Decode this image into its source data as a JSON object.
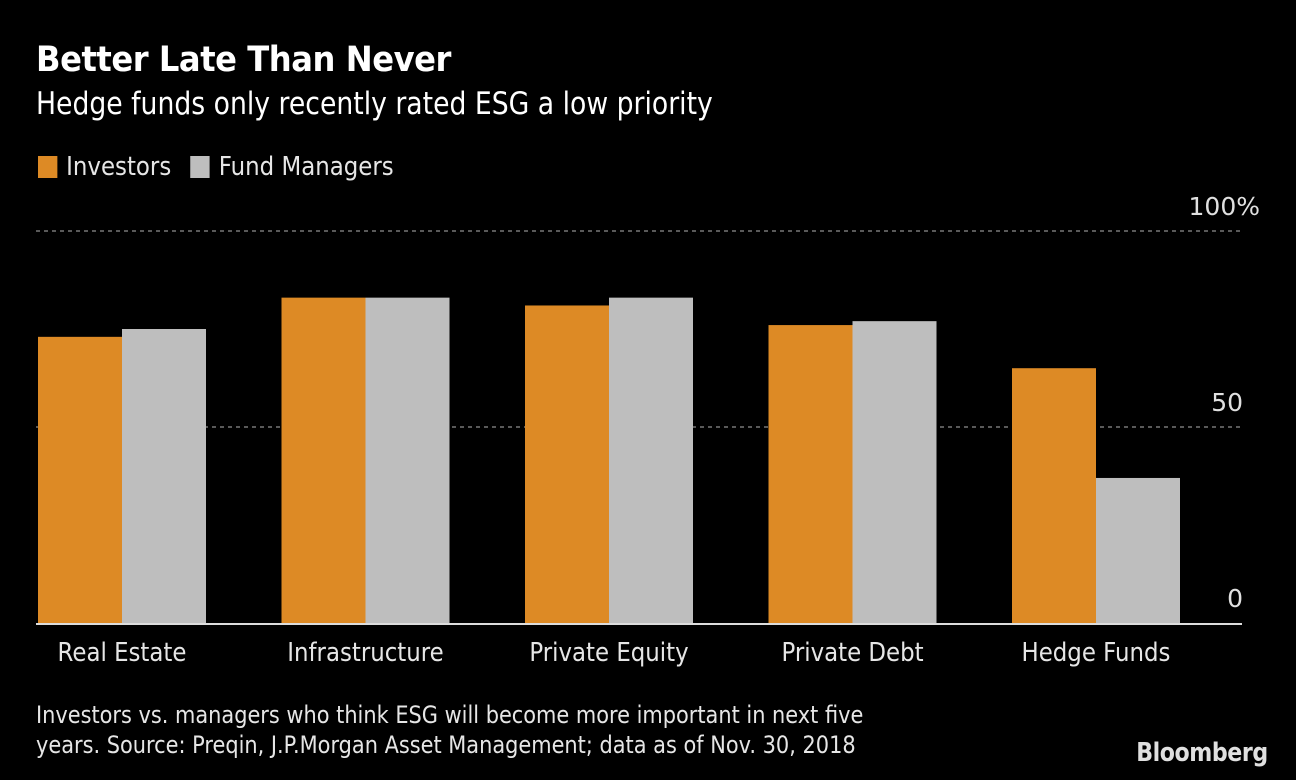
{
  "chart_data": {
    "type": "bar",
    "title": "Better Late Than Never",
    "subtitle": "Hedge funds only recently rated ESG a low priority",
    "categories": [
      "Real Estate",
      "Infrastructure",
      "Private Equity",
      "Private Debt",
      "Hedge Funds"
    ],
    "series": [
      {
        "name": "Investors",
        "color": "#DD8A25",
        "values": [
          73,
          83,
          81,
          76,
          65
        ]
      },
      {
        "name": "Fund Managers",
        "color": "#BEBEBE",
        "values": [
          75,
          83,
          83,
          77,
          37
        ]
      }
    ],
    "xlabel": "",
    "ylabel": "",
    "ylim": [
      0,
      100
    ],
    "yticks": [
      {
        "value": 0,
        "label": "0"
      },
      {
        "value": 50,
        "label": "50"
      },
      {
        "value": 100,
        "label": "100%"
      }
    ],
    "grid": true,
    "legend_position": "top-left",
    "axis_side": "right"
  },
  "footnote": {
    "line1": "Investors vs. managers who think ESG will become more important in next five",
    "line2": "years. Source: Preqin, J.P.Morgan Asset Management; data as of Nov. 30, 2018"
  },
  "brand": "Bloomberg"
}
